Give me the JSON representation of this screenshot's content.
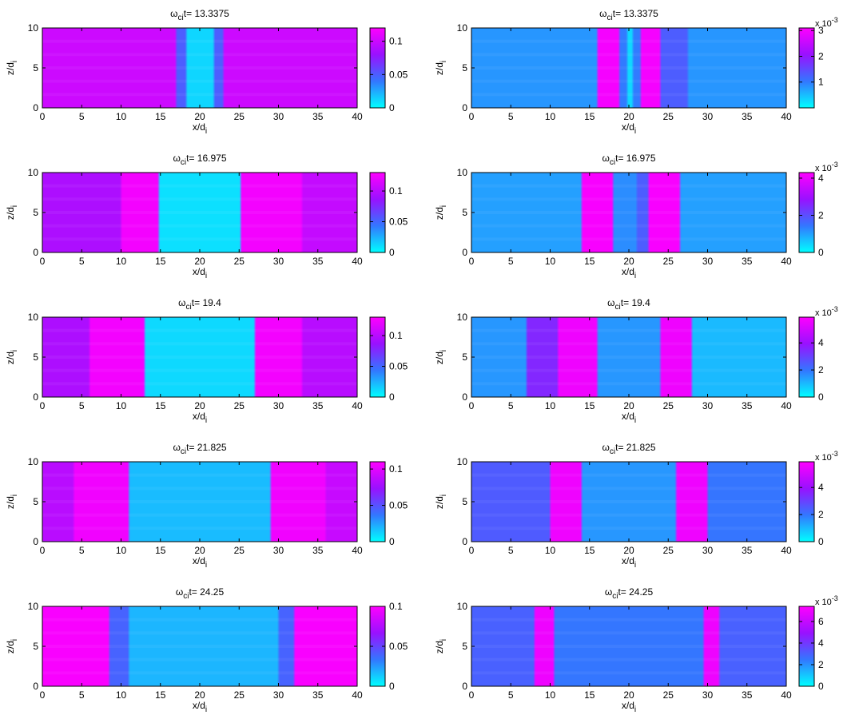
{
  "chart_data": [
    {
      "type": "heatmap",
      "title": {
        "omega": "ω",
        "sub": "ci",
        "rest": "t= 13.3375"
      },
      "xlabel": {
        "main": "x/d",
        "sub": "i"
      },
      "ylabel": {
        "main": "z/d",
        "sub": "i"
      },
      "xlim": [
        0,
        40
      ],
      "ylim": [
        0,
        10
      ],
      "xticks": [
        0,
        5,
        10,
        15,
        20,
        25,
        30,
        35,
        40
      ],
      "yticks": [
        0,
        5,
        10
      ],
      "colorbar": {
        "range": [
          0,
          0.12
        ],
        "ticks": [
          0,
          0.05,
          0.1
        ],
        "tick_labels": [
          "0",
          "0.05",
          "0.1"
        ],
        "multiplier": "",
        "colormap": [
          "#00ffff",
          "#3377ff",
          "#9911ff",
          "#ff00ff"
        ]
      },
      "bands": [
        {
          "x": [
            0,
            17
          ],
          "value": 0.1
        },
        {
          "x": [
            17,
            18.3
          ],
          "value": 0.05
        },
        {
          "x": [
            18.3,
            21.8
          ],
          "value": 0.012
        },
        {
          "x": [
            21.8,
            23
          ],
          "value": 0.05
        },
        {
          "x": [
            23,
            40
          ],
          "value": 0.1
        }
      ]
    },
    {
      "type": "heatmap",
      "title": {
        "omega": "ω",
        "sub": "ci",
        "rest": "t= 13.3375"
      },
      "xlabel": {
        "main": "x/d",
        "sub": "i"
      },
      "ylabel": {
        "main": "z/d",
        "sub": "i"
      },
      "xlim": [
        0,
        40
      ],
      "ylim": [
        0,
        10
      ],
      "xticks": [
        0,
        5,
        10,
        15,
        20,
        25,
        30,
        35,
        40
      ],
      "yticks": [
        0,
        5,
        10
      ],
      "colorbar": {
        "range": [
          0,
          3.1
        ],
        "ticks": [
          1,
          2,
          3
        ],
        "tick_labels": [
          "1",
          "2",
          "3"
        ],
        "multiplier": "x 10",
        "exponent": "-3",
        "colormap": [
          "#00ffff",
          "#3377ff",
          "#9911ff",
          "#ff00ff"
        ]
      },
      "bands": [
        {
          "x": [
            0,
            16
          ],
          "value": 0.8
        },
        {
          "x": [
            16,
            18.8
          ],
          "value": 3.0
        },
        {
          "x": [
            18.8,
            19.8
          ],
          "value": 1.0
        },
        {
          "x": [
            19.8,
            20.5
          ],
          "value": 0.3
        },
        {
          "x": [
            20.5,
            21.5
          ],
          "value": 1.0
        },
        {
          "x": [
            21.5,
            24
          ],
          "value": 3.0
        },
        {
          "x": [
            24,
            27.5
          ],
          "value": 1.3
        },
        {
          "x": [
            27.5,
            40
          ],
          "value": 0.8
        }
      ]
    },
    {
      "type": "heatmap",
      "title": {
        "omega": "ω",
        "sub": "ci",
        "rest": "t= 16.975"
      },
      "xlabel": {
        "main": "x/d",
        "sub": "i"
      },
      "ylabel": {
        "main": "z/d",
        "sub": "i"
      },
      "xlim": [
        0,
        40
      ],
      "ylim": [
        0,
        10
      ],
      "xticks": [
        0,
        5,
        10,
        15,
        20,
        25,
        30,
        35,
        40
      ],
      "yticks": [
        0,
        5,
        10
      ],
      "colorbar": {
        "range": [
          0,
          0.13
        ],
        "ticks": [
          0,
          0.05,
          0.1
        ],
        "tick_labels": [
          "0",
          "0.05",
          "0.1"
        ],
        "multiplier": "",
        "colormap": [
          "#00ffff",
          "#3377ff",
          "#9911ff",
          "#ff00ff"
        ]
      },
      "bands": [
        {
          "x": [
            0,
            10
          ],
          "value": 0.095
        },
        {
          "x": [
            10,
            14.8
          ],
          "value": 0.125
        },
        {
          "x": [
            14.8,
            25.2
          ],
          "value": 0.01
        },
        {
          "x": [
            25.2,
            33
          ],
          "value": 0.125
        },
        {
          "x": [
            33,
            40
          ],
          "value": 0.105
        }
      ]
    },
    {
      "type": "heatmap",
      "title": {
        "omega": "ω",
        "sub": "ci",
        "rest": "t= 16.975"
      },
      "xlabel": {
        "main": "x/d",
        "sub": "i"
      },
      "ylabel": {
        "main": "z/d",
        "sub": "i"
      },
      "xlim": [
        0,
        40
      ],
      "ylim": [
        0,
        10
      ],
      "xticks": [
        0,
        5,
        10,
        15,
        20,
        25,
        30,
        35,
        40
      ],
      "yticks": [
        0,
        5,
        10
      ],
      "colorbar": {
        "range": [
          0,
          4.3
        ],
        "ticks": [
          0,
          2,
          4
        ],
        "tick_labels": [
          "0",
          "2",
          "4"
        ],
        "multiplier": "x 10",
        "exponent": "-3",
        "colormap": [
          "#00ffff",
          "#3377ff",
          "#9911ff",
          "#ff00ff"
        ]
      },
      "bands": [
        {
          "x": [
            0,
            14
          ],
          "value": 1.0
        },
        {
          "x": [
            14,
            18
          ],
          "value": 4.2
        },
        {
          "x": [
            18,
            21
          ],
          "value": 1.2
        },
        {
          "x": [
            21,
            22.5
          ],
          "value": 1.8
        },
        {
          "x": [
            22.5,
            26.5
          ],
          "value": 4.2
        },
        {
          "x": [
            26.5,
            40
          ],
          "value": 1.0
        }
      ]
    },
    {
      "type": "heatmap",
      "title": {
        "omega": "ω",
        "sub": "ci",
        "rest": "t= 19.4"
      },
      "xlabel": {
        "main": "x/d",
        "sub": "i"
      },
      "ylabel": {
        "main": "z/d",
        "sub": "i"
      },
      "xlim": [
        0,
        40
      ],
      "ylim": [
        0,
        10
      ],
      "xticks": [
        0,
        5,
        10,
        15,
        20,
        25,
        30,
        35,
        40
      ],
      "yticks": [
        0,
        5,
        10
      ],
      "colorbar": {
        "range": [
          0,
          0.13
        ],
        "ticks": [
          0,
          0.05,
          0.1
        ],
        "tick_labels": [
          "0",
          "0.05",
          "0.1"
        ],
        "multiplier": "",
        "colormap": [
          "#00ffff",
          "#3377ff",
          "#9911ff",
          "#ff00ff"
        ]
      },
      "bands": [
        {
          "x": [
            0,
            6
          ],
          "value": 0.095
        },
        {
          "x": [
            6,
            13
          ],
          "value": 0.125
        },
        {
          "x": [
            13,
            27
          ],
          "value": 0.012
        },
        {
          "x": [
            27,
            33
          ],
          "value": 0.125
        },
        {
          "x": [
            33,
            40
          ],
          "value": 0.1
        }
      ]
    },
    {
      "type": "heatmap",
      "title": {
        "omega": "ω",
        "sub": "ci",
        "rest": "t= 19.4"
      },
      "xlabel": {
        "main": "x/d",
        "sub": "i"
      },
      "ylabel": {
        "main": "z/d",
        "sub": "i"
      },
      "xlim": [
        0,
        40
      ],
      "ylim": [
        0,
        10
      ],
      "xticks": [
        0,
        5,
        10,
        15,
        20,
        25,
        30,
        35,
        40
      ],
      "yticks": [
        0,
        5,
        10
      ],
      "colorbar": {
        "range": [
          0,
          5.9
        ],
        "ticks": [
          0,
          2,
          4
        ],
        "tick_labels": [
          "0",
          "2",
          "4"
        ],
        "multiplier": "x 10",
        "exponent": "-3",
        "colormap": [
          "#00ffff",
          "#3377ff",
          "#9911ff",
          "#ff00ff"
        ]
      },
      "bands": [
        {
          "x": [
            0,
            7
          ],
          "value": 1.5
        },
        {
          "x": [
            7,
            11
          ],
          "value": 3.5
        },
        {
          "x": [
            11,
            16
          ],
          "value": 5.6
        },
        {
          "x": [
            16,
            24
          ],
          "value": 1.5
        },
        {
          "x": [
            24,
            28
          ],
          "value": 5.6
        },
        {
          "x": [
            28,
            40
          ],
          "value": 1.0
        }
      ]
    },
    {
      "type": "heatmap",
      "title": {
        "omega": "ω",
        "sub": "ci",
        "rest": "t= 21.825"
      },
      "xlabel": {
        "main": "x/d",
        "sub": "i"
      },
      "ylabel": {
        "main": "z/d",
        "sub": "i"
      },
      "xlim": [
        0,
        40
      ],
      "ylim": [
        0,
        10
      ],
      "xticks": [
        0,
        5,
        10,
        15,
        20,
        25,
        30,
        35,
        40
      ],
      "yticks": [
        0,
        5,
        10
      ],
      "colorbar": {
        "range": [
          0,
          0.11
        ],
        "ticks": [
          0,
          0.05,
          0.1
        ],
        "tick_labels": [
          "0",
          "0.05",
          "0.1"
        ],
        "multiplier": "",
        "colormap": [
          "#00ffff",
          "#3377ff",
          "#9911ff",
          "#ff00ff"
        ]
      },
      "bands": [
        {
          "x": [
            0,
            4
          ],
          "value": 0.085
        },
        {
          "x": [
            4,
            11
          ],
          "value": 0.105
        },
        {
          "x": [
            11,
            29
          ],
          "value": 0.018
        },
        {
          "x": [
            29,
            36
          ],
          "value": 0.105
        },
        {
          "x": [
            36,
            40
          ],
          "value": 0.09
        }
      ]
    },
    {
      "type": "heatmap",
      "title": {
        "omega": "ω",
        "sub": "ci",
        "rest": "t= 21.825"
      },
      "xlabel": {
        "main": "x/d",
        "sub": "i"
      },
      "ylabel": {
        "main": "z/d",
        "sub": "i"
      },
      "xlim": [
        0,
        40
      ],
      "ylim": [
        0,
        10
      ],
      "xticks": [
        0,
        5,
        10,
        15,
        20,
        25,
        30,
        35,
        40
      ],
      "yticks": [
        0,
        5,
        10
      ],
      "colorbar": {
        "range": [
          0,
          5.9
        ],
        "ticks": [
          0,
          2,
          4
        ],
        "tick_labels": [
          "0",
          "2",
          "4"
        ],
        "multiplier": "x 10",
        "exponent": "-3",
        "colormap": [
          "#00ffff",
          "#3377ff",
          "#9911ff",
          "#ff00ff"
        ]
      },
      "bands": [
        {
          "x": [
            0,
            10
          ],
          "value": 2.5
        },
        {
          "x": [
            10,
            14
          ],
          "value": 5.6
        },
        {
          "x": [
            14,
            26
          ],
          "value": 1.5
        },
        {
          "x": [
            26,
            30
          ],
          "value": 5.6
        },
        {
          "x": [
            30,
            40
          ],
          "value": 2.0
        }
      ]
    },
    {
      "type": "heatmap",
      "title": {
        "omega": "ω",
        "sub": "ci",
        "rest": "t= 24.25"
      },
      "xlabel": {
        "main": "x/d",
        "sub": "i"
      },
      "ylabel": {
        "main": "z/d",
        "sub": "i"
      },
      "xlim": [
        0,
        40
      ],
      "ylim": [
        0,
        10
      ],
      "xticks": [
        0,
        5,
        10,
        15,
        20,
        25,
        30,
        35,
        40
      ],
      "yticks": [
        0,
        5,
        10
      ],
      "colorbar": {
        "range": [
          0,
          0.1
        ],
        "ticks": [
          0,
          0.05,
          0.1
        ],
        "tick_labels": [
          "0",
          "0.05",
          "0.1"
        ],
        "multiplier": "",
        "colormap": [
          "#00ffff",
          "#3377ff",
          "#9911ff",
          "#ff00ff"
        ]
      },
      "bands": [
        {
          "x": [
            0,
            8.5
          ],
          "value": 0.098
        },
        {
          "x": [
            8.5,
            11
          ],
          "value": 0.04
        },
        {
          "x": [
            11,
            30
          ],
          "value": 0.018
        },
        {
          "x": [
            30,
            32
          ],
          "value": 0.04
        },
        {
          "x": [
            32,
            40
          ],
          "value": 0.098
        }
      ]
    },
    {
      "type": "heatmap",
      "title": {
        "omega": "ω",
        "sub": "ci",
        "rest": "t= 24.25"
      },
      "xlabel": {
        "main": "x/d",
        "sub": "i"
      },
      "ylabel": {
        "main": "z/d",
        "sub": "i"
      },
      "xlim": [
        0,
        40
      ],
      "ylim": [
        0,
        10
      ],
      "xticks": [
        0,
        5,
        10,
        15,
        20,
        25,
        30,
        35,
        40
      ],
      "yticks": [
        0,
        5,
        10
      ],
      "colorbar": {
        "range": [
          0,
          7.4
        ],
        "ticks": [
          0,
          2,
          4,
          6
        ],
        "tick_labels": [
          "0",
          "2",
          "4",
          "6"
        ],
        "multiplier": "x 10",
        "exponent": "-3",
        "colormap": [
          "#00ffff",
          "#3377ff",
          "#9911ff",
          "#ff00ff"
        ]
      },
      "bands": [
        {
          "x": [
            0,
            8
          ],
          "value": 3.0
        },
        {
          "x": [
            8,
            10.5
          ],
          "value": 7.0
        },
        {
          "x": [
            10.5,
            29.5
          ],
          "value": 2.5
        },
        {
          "x": [
            29.5,
            31.5
          ],
          "value": 7.0
        },
        {
          "x": [
            31.5,
            40
          ],
          "value": 3.0
        }
      ]
    }
  ]
}
